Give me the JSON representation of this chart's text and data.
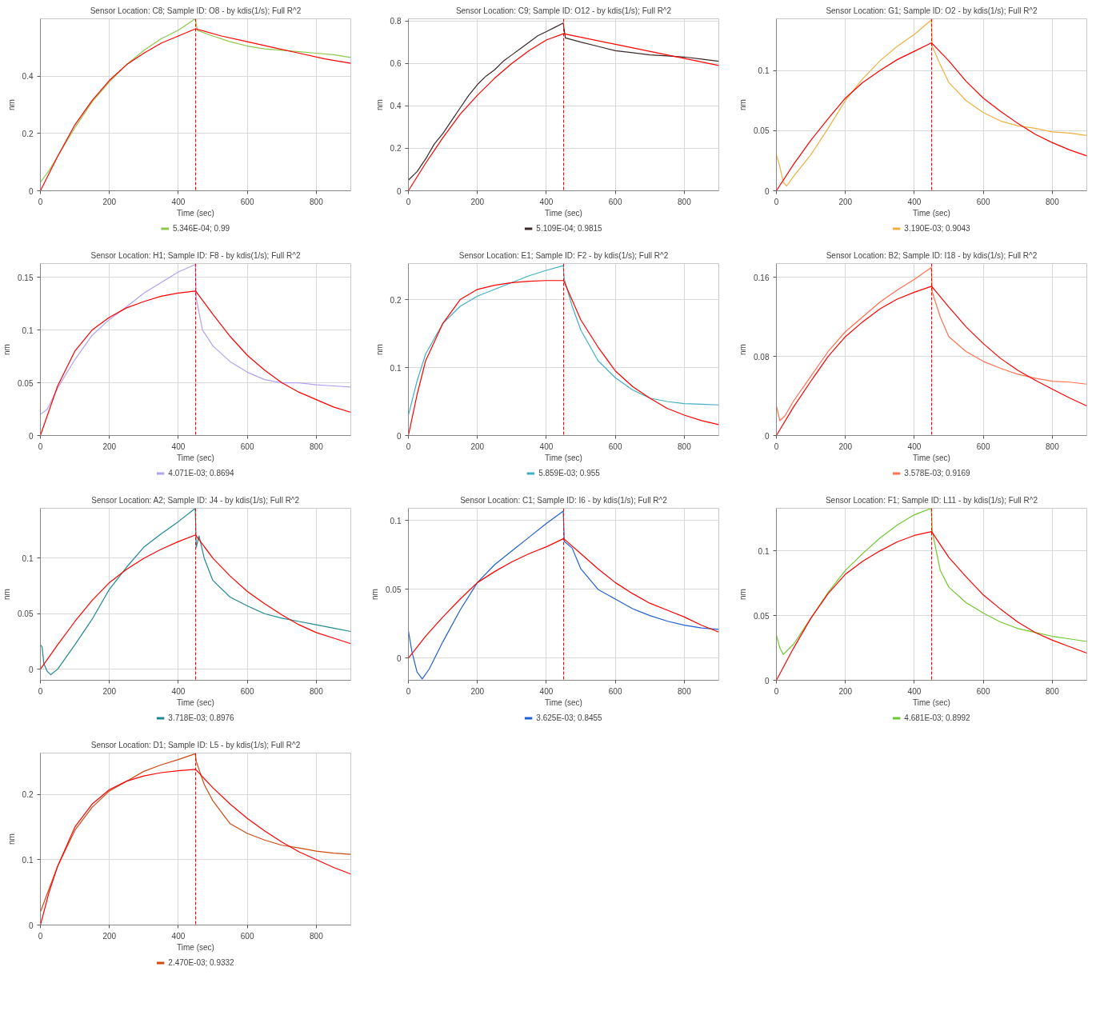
{
  "chart_data": [
    {
      "type": "line",
      "title": "Sensor Location: C8; Sample ID: O8 - by kdis(1/s); Full R^2",
      "xlabel": "Time (sec)",
      "ylabel": "nm",
      "xlim": [
        0,
        900
      ],
      "xticks": [
        0,
        200,
        400,
        600,
        800
      ],
      "ylim": [
        0,
        0.6
      ],
      "yticks": [
        0,
        0.2,
        0.4
      ],
      "grid": true,
      "legend": "bottom",
      "ref_lines": [
        {
          "axis": "x",
          "value": 450,
          "color": "#ff0000",
          "line_style": "dashed"
        }
      ],
      "series": [
        {
          "name": "5.346E-04; 0.99",
          "color": "#8cc84b",
          "x": [
            0,
            25,
            50,
            100,
            150,
            200,
            250,
            300,
            350,
            400,
            449,
            455,
            500,
            550,
            600,
            650,
            700,
            750,
            800,
            850,
            900
          ],
          "values": [
            0.03,
            0.07,
            0.12,
            0.22,
            0.31,
            0.38,
            0.44,
            0.49,
            0.53,
            0.56,
            0.6,
            0.56,
            0.54,
            0.52,
            0.505,
            0.495,
            0.49,
            0.485,
            0.48,
            0.475,
            0.465
          ]
        },
        {
          "color": "#ff0000",
          "x": [
            0,
            25,
            50,
            100,
            150,
            200,
            250,
            300,
            350,
            400,
            450,
            525,
            600,
            675,
            750,
            825,
            900
          ],
          "values": [
            0,
            0.06,
            0.12,
            0.23,
            0.315,
            0.385,
            0.44,
            0.48,
            0.515,
            0.54,
            0.565,
            0.54,
            0.52,
            0.5,
            0.48,
            0.46,
            0.445
          ]
        }
      ]
    },
    {
      "type": "line",
      "title": "Sensor Location: C9; Sample ID: O12 - by kdis(1/s); Full R^2",
      "xlabel": "Time (sec)",
      "ylabel": "nm",
      "xlim": [
        0,
        900
      ],
      "xticks": [
        0,
        200,
        400,
        600,
        800
      ],
      "ylim": [
        0,
        0.81
      ],
      "yticks": [
        0,
        0.2,
        0.4,
        0.6,
        0.8
      ],
      "grid": true,
      "legend": "bottom",
      "ref_lines": [
        {
          "axis": "x",
          "value": 450,
          "color": "#ff0000",
          "line_style": "dashed"
        }
      ],
      "series": [
        {
          "name": "5.109E-04; 0.9815",
          "color": "#3a2a2a",
          "x": [
            0,
            25,
            50,
            75,
            100,
            125,
            150,
            175,
            200,
            225,
            250,
            275,
            300,
            325,
            350,
            375,
            400,
            425,
            449,
            455,
            500,
            550,
            600,
            650,
            700,
            750,
            800,
            850,
            900
          ],
          "values": [
            0.05,
            0.09,
            0.15,
            0.22,
            0.27,
            0.33,
            0.39,
            0.45,
            0.5,
            0.54,
            0.57,
            0.61,
            0.64,
            0.67,
            0.7,
            0.73,
            0.75,
            0.77,
            0.79,
            0.72,
            0.7,
            0.68,
            0.66,
            0.65,
            0.64,
            0.635,
            0.63,
            0.62,
            0.61
          ]
        },
        {
          "color": "#ff0000",
          "x": [
            0,
            50,
            100,
            150,
            200,
            250,
            300,
            350,
            400,
            450,
            600,
            750,
            900
          ],
          "values": [
            0,
            0.13,
            0.25,
            0.36,
            0.45,
            0.53,
            0.6,
            0.66,
            0.71,
            0.74,
            0.69,
            0.64,
            0.59
          ]
        }
      ]
    },
    {
      "type": "line",
      "title": "Sensor Location: G1; Sample ID: O2 - by kdis(1/s); Full R^2",
      "xlabel": "Time (sec)",
      "ylabel": "nm",
      "xlim": [
        0,
        900
      ],
      "xticks": [
        0,
        200,
        400,
        600,
        800
      ],
      "ylim": [
        0,
        0.143
      ],
      "yticks": [
        0,
        0.05,
        0.1
      ],
      "grid": true,
      "legend": "bottom",
      "ref_lines": [
        {
          "axis": "x",
          "value": 450,
          "color": "#ff0000",
          "line_style": "dashed"
        }
      ],
      "series": [
        {
          "name": "3.190E-03; 0.9043",
          "color": "#f0b040",
          "x": [
            0,
            10,
            20,
            30,
            50,
            100,
            150,
            200,
            250,
            300,
            350,
            400,
            449,
            452,
            475,
            500,
            550,
            600,
            650,
            700,
            750,
            800,
            850,
            900
          ],
          "values": [
            0.03,
            0.02,
            0.007,
            0.004,
            0.012,
            0.03,
            0.052,
            0.075,
            0.093,
            0.108,
            0.12,
            0.13,
            0.142,
            0.12,
            0.105,
            0.09,
            0.075,
            0.065,
            0.058,
            0.054,
            0.052,
            0.049,
            0.048,
            0.046
          ]
        },
        {
          "color": "#ff0000",
          "x": [
            0,
            50,
            100,
            150,
            200,
            250,
            300,
            350,
            400,
            450,
            500,
            550,
            600,
            650,
            700,
            750,
            800,
            850,
            900
          ],
          "values": [
            0,
            0.022,
            0.042,
            0.06,
            0.077,
            0.09,
            0.1,
            0.109,
            0.116,
            0.123,
            0.108,
            0.091,
            0.077,
            0.066,
            0.056,
            0.047,
            0.04,
            0.034,
            0.029
          ]
        }
      ]
    },
    {
      "type": "line",
      "title": "Sensor Location: H1; Sample ID: F8 - by kdis(1/s); Full R^2",
      "xlabel": "Time (sec)",
      "ylabel": "nm",
      "xlim": [
        0,
        900
      ],
      "xticks": [
        0,
        200,
        400,
        600,
        800
      ],
      "ylim": [
        0,
        0.163
      ],
      "yticks": [
        0,
        0.05,
        0.1,
        0.15
      ],
      "grid": true,
      "legend": "bottom",
      "ref_lines": [
        {
          "axis": "x",
          "value": 450,
          "color": "#ff0000",
          "line_style": "dashed"
        }
      ],
      "series": [
        {
          "name": "4.071E-03; 0.8694",
          "color": "#b4a0f0",
          "x": [
            0,
            20,
            50,
            100,
            150,
            200,
            250,
            300,
            350,
            400,
            449,
            452,
            470,
            500,
            550,
            600,
            650,
            700,
            750,
            800,
            850,
            900
          ],
          "values": [
            0.02,
            0.025,
            0.045,
            0.072,
            0.095,
            0.11,
            0.122,
            0.135,
            0.145,
            0.155,
            0.162,
            0.13,
            0.1,
            0.085,
            0.07,
            0.06,
            0.053,
            0.05,
            0.05,
            0.048,
            0.047,
            0.046
          ]
        },
        {
          "color": "#ff0000",
          "x": [
            0,
            50,
            100,
            150,
            200,
            250,
            300,
            350,
            400,
            450,
            500,
            550,
            600,
            650,
            700,
            750,
            800,
            850,
            900
          ],
          "values": [
            0,
            0.047,
            0.08,
            0.1,
            0.112,
            0.121,
            0.127,
            0.132,
            0.135,
            0.137,
            0.115,
            0.094,
            0.076,
            0.062,
            0.05,
            0.041,
            0.034,
            0.027,
            0.022
          ]
        }
      ]
    },
    {
      "type": "line",
      "title": "Sensor Location: E1; Sample ID: F2 - by kdis(1/s); Full R^2",
      "xlabel": "Time (sec)",
      "ylabel": "nm",
      "xlim": [
        0,
        900
      ],
      "xticks": [
        0,
        200,
        400,
        600,
        800
      ],
      "ylim": [
        0,
        0.253
      ],
      "yticks": [
        0,
        0.1,
        0.2
      ],
      "grid": true,
      "legend": "bottom",
      "ref_lines": [
        {
          "axis": "x",
          "value": 450,
          "color": "#ff0000",
          "line_style": "dashed"
        }
      ],
      "series": [
        {
          "name": "5.859E-03; 0.955",
          "color": "#40b0c0",
          "x": [
            0,
            25,
            50,
            100,
            150,
            200,
            250,
            300,
            350,
            400,
            449,
            452,
            475,
            500,
            550,
            600,
            650,
            700,
            750,
            800,
            850,
            900
          ],
          "values": [
            0.03,
            0.08,
            0.12,
            0.165,
            0.19,
            0.205,
            0.215,
            0.225,
            0.235,
            0.243,
            0.25,
            0.23,
            0.19,
            0.155,
            0.11,
            0.085,
            0.067,
            0.055,
            0.05,
            0.047,
            0.046,
            0.045
          ]
        },
        {
          "color": "#ff0000",
          "x": [
            0,
            25,
            50,
            100,
            150,
            200,
            250,
            300,
            350,
            400,
            450,
            500,
            550,
            600,
            650,
            700,
            750,
            800,
            850,
            900
          ],
          "values": [
            0,
            0.06,
            0.11,
            0.165,
            0.2,
            0.215,
            0.221,
            0.225,
            0.227,
            0.228,
            0.228,
            0.17,
            0.13,
            0.095,
            0.072,
            0.055,
            0.04,
            0.03,
            0.022,
            0.016
          ]
        }
      ]
    },
    {
      "type": "line",
      "title": "Sensor Location: B2; Sample ID: I18 - by kdis(1/s); Full R^2",
      "xlabel": "Time (sec)",
      "ylabel": "nm",
      "xlim": [
        0,
        900
      ],
      "xticks": [
        0,
        200,
        400,
        600,
        800
      ],
      "ylim": [
        0,
        0.174
      ],
      "yticks": [
        0,
        0.08,
        0.16
      ],
      "grid": true,
      "legend": "bottom",
      "ref_lines": [
        {
          "axis": "x",
          "value": 450,
          "color": "#ff0000",
          "line_style": "dashed"
        }
      ],
      "series": [
        {
          "name": "3.578E-03; 0.9169",
          "color": "#ff7050",
          "x": [
            0,
            10,
            25,
            50,
            100,
            150,
            200,
            250,
            300,
            350,
            400,
            449,
            452,
            475,
            500,
            550,
            600,
            650,
            700,
            750,
            800,
            850,
            900
          ],
          "values": [
            0.03,
            0.015,
            0.02,
            0.035,
            0.06,
            0.085,
            0.105,
            0.12,
            0.135,
            0.147,
            0.158,
            0.17,
            0.145,
            0.12,
            0.1,
            0.085,
            0.075,
            0.068,
            0.062,
            0.058,
            0.055,
            0.054,
            0.052
          ]
        },
        {
          "color": "#ff0000",
          "x": [
            0,
            50,
            100,
            150,
            200,
            250,
            300,
            350,
            400,
            450,
            500,
            550,
            600,
            650,
            700,
            750,
            800,
            850,
            900
          ],
          "values": [
            0,
            0.029,
            0.055,
            0.08,
            0.1,
            0.115,
            0.128,
            0.138,
            0.145,
            0.151,
            0.13,
            0.11,
            0.093,
            0.078,
            0.066,
            0.056,
            0.047,
            0.038,
            0.03
          ]
        }
      ]
    },
    {
      "type": "line",
      "title": "Sensor Location: A2; Sample ID: J4 - by kdis(1/s); Full R^2",
      "xlabel": "Time (sec)",
      "ylabel": "nm",
      "xlim": [
        0,
        900
      ],
      "xticks": [
        0,
        200,
        400,
        600,
        800
      ],
      "ylim": [
        -0.01,
        0.145
      ],
      "yticks": [
        0,
        0.05,
        0.1
      ],
      "grid": true,
      "legend": "bottom",
      "ref_lines": [
        {
          "axis": "x",
          "value": 450,
          "color": "#ff0000",
          "line_style": "dashed"
        }
      ],
      "series": [
        {
          "name": "3.718E-03; 0.8976",
          "color": "#208890",
          "x": [
            0,
            5,
            10,
            20,
            30,
            50,
            100,
            150,
            200,
            250,
            300,
            350,
            400,
            449,
            452,
            460,
            475,
            500,
            550,
            600,
            650,
            700,
            750,
            800,
            850,
            900
          ],
          "values": [
            0.022,
            0.02,
            0.005,
            -0.002,
            -0.005,
            0.0,
            0.022,
            0.045,
            0.072,
            0.092,
            0.11,
            0.122,
            0.133,
            0.145,
            0.11,
            0.12,
            0.1,
            0.08,
            0.065,
            0.057,
            0.05,
            0.046,
            0.043,
            0.04,
            0.037,
            0.034
          ]
        },
        {
          "color": "#ff0000",
          "x": [
            0,
            50,
            100,
            150,
            200,
            250,
            300,
            350,
            400,
            450,
            500,
            550,
            600,
            650,
            700,
            750,
            800,
            850,
            900
          ],
          "values": [
            0,
            0.022,
            0.043,
            0.062,
            0.078,
            0.09,
            0.1,
            0.108,
            0.115,
            0.121,
            0.1,
            0.084,
            0.07,
            0.059,
            0.049,
            0.04,
            0.033,
            0.028,
            0.023
          ]
        }
      ]
    },
    {
      "type": "line",
      "title": "Sensor Location: C1; Sample ID: I6 - by kdis(1/s); Full R^2",
      "xlabel": "Time (sec)",
      "ylabel": "nm",
      "xlim": [
        0,
        900
      ],
      "xticks": [
        0,
        200,
        400,
        600,
        800
      ],
      "ylim": [
        -0.016,
        0.109
      ],
      "yticks": [
        0,
        0.05,
        0.1
      ],
      "grid": true,
      "legend": "bottom",
      "ref_lines": [
        {
          "axis": "x",
          "value": 450,
          "color": "#ff0000",
          "line_style": "dashed"
        }
      ],
      "series": [
        {
          "name": "3.625E-03; 0.8455",
          "color": "#2060d0",
          "x": [
            0,
            10,
            25,
            40,
            60,
            100,
            150,
            200,
            250,
            300,
            350,
            400,
            449,
            452,
            475,
            500,
            550,
            600,
            650,
            700,
            750,
            800,
            850,
            900
          ],
          "values": [
            0.02,
            0.005,
            -0.01,
            -0.015,
            -0.008,
            0.012,
            0.035,
            0.055,
            0.068,
            0.078,
            0.088,
            0.098,
            0.107,
            0.085,
            0.08,
            0.065,
            0.05,
            0.043,
            0.036,
            0.031,
            0.027,
            0.024,
            0.022,
            0.021
          ]
        },
        {
          "color": "#ff0000",
          "x": [
            0,
            50,
            100,
            150,
            200,
            250,
            300,
            350,
            400,
            450,
            500,
            550,
            600,
            650,
            700,
            750,
            800,
            850,
            900
          ],
          "values": [
            0,
            0.016,
            0.03,
            0.043,
            0.055,
            0.063,
            0.07,
            0.076,
            0.081,
            0.087,
            0.076,
            0.065,
            0.055,
            0.047,
            0.04,
            0.035,
            0.03,
            0.024,
            0.019
          ]
        }
      ]
    },
    {
      "type": "line",
      "title": "Sensor Location: F1; Sample ID: L11 - by kdis(1/s); Full R^2",
      "xlabel": "Time (sec)",
      "ylabel": "nm",
      "xlim": [
        0,
        900
      ],
      "xticks": [
        0,
        200,
        400,
        600,
        800
      ],
      "ylim": [
        0,
        0.133
      ],
      "yticks": [
        0,
        0.05,
        0.1
      ],
      "grid": true,
      "legend": "bottom",
      "ref_lines": [
        {
          "axis": "x",
          "value": 450,
          "color": "#ff0000",
          "line_style": "dashed"
        }
      ],
      "series": [
        {
          "name": "4.681E-03; 0.8992",
          "color": "#70c830",
          "x": [
            0,
            10,
            20,
            50,
            100,
            150,
            200,
            250,
            300,
            350,
            400,
            449,
            452,
            475,
            500,
            550,
            600,
            650,
            700,
            750,
            800,
            850,
            900
          ],
          "values": [
            0.035,
            0.025,
            0.02,
            0.028,
            0.048,
            0.068,
            0.085,
            0.098,
            0.11,
            0.12,
            0.128,
            0.133,
            0.115,
            0.085,
            0.072,
            0.06,
            0.052,
            0.045,
            0.04,
            0.037,
            0.034,
            0.032,
            0.03
          ]
        },
        {
          "color": "#ff0000",
          "x": [
            0,
            50,
            100,
            150,
            200,
            250,
            300,
            350,
            400,
            450,
            500,
            550,
            600,
            650,
            700,
            750,
            800,
            850,
            900
          ],
          "values": [
            0,
            0.025,
            0.048,
            0.067,
            0.082,
            0.092,
            0.1,
            0.107,
            0.112,
            0.115,
            0.095,
            0.08,
            0.066,
            0.055,
            0.045,
            0.037,
            0.031,
            0.026,
            0.021
          ]
        }
      ]
    },
    {
      "type": "line",
      "title": "Sensor Location: D1; Sample ID: L5 - by kdis(1/s); Full R^2",
      "xlabel": "Time (sec)",
      "ylabel": "nm",
      "xlim": [
        0,
        900
      ],
      "xticks": [
        0,
        200,
        400,
        600,
        800
      ],
      "ylim": [
        0,
        0.263
      ],
      "yticks": [
        0,
        0.1,
        0.2
      ],
      "grid": true,
      "legend": "bottom",
      "ref_lines": [
        {
          "axis": "x",
          "value": 450,
          "color": "#ff0000",
          "line_style": "dashed"
        }
      ],
      "series": [
        {
          "name": "2.470E-03; 0.9332",
          "color": "#d04a10",
          "x": [
            0,
            25,
            50,
            100,
            150,
            200,
            250,
            300,
            350,
            400,
            449,
            452,
            475,
            500,
            550,
            600,
            650,
            700,
            750,
            800,
            850,
            900
          ],
          "values": [
            0.02,
            0.055,
            0.09,
            0.145,
            0.18,
            0.205,
            0.22,
            0.235,
            0.245,
            0.253,
            0.262,
            0.25,
            0.215,
            0.19,
            0.155,
            0.14,
            0.13,
            0.122,
            0.118,
            0.113,
            0.11,
            0.108
          ]
        },
        {
          "color": "#ff0000",
          "x": [
            0,
            25,
            50,
            100,
            150,
            200,
            250,
            300,
            350,
            400,
            450,
            500,
            550,
            600,
            650,
            700,
            750,
            800,
            850,
            900
          ],
          "values": [
            0,
            0.05,
            0.09,
            0.15,
            0.185,
            0.207,
            0.22,
            0.228,
            0.233,
            0.236,
            0.238,
            0.21,
            0.185,
            0.163,
            0.144,
            0.127,
            0.112,
            0.1,
            0.088,
            0.078
          ]
        }
      ]
    }
  ]
}
